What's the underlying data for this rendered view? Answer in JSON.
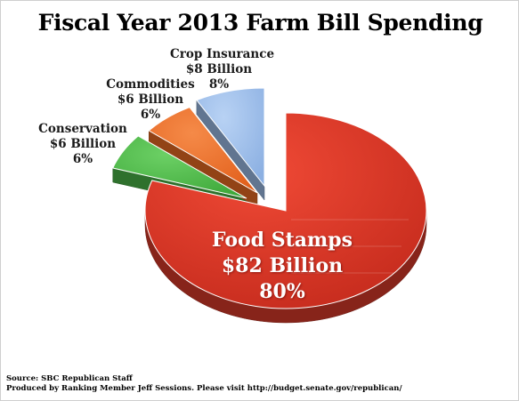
{
  "chart_data": {
    "type": "pie",
    "title": "Fiscal Year 2013 Farm Bill Spending",
    "slices": [
      {
        "label": "Food Stamps",
        "amount": "$82 Billion",
        "percent_label": "80%",
        "value": 80,
        "color": "#d93a2a"
      },
      {
        "label": "Conservation",
        "amount": "$6 Billion",
        "percent_label": "6%",
        "value": 6,
        "color": "#4cb748"
      },
      {
        "label": "Commodities",
        "amount": "$6 Billion",
        "percent_label": "6%",
        "value": 6,
        "color": "#ec6c24"
      },
      {
        "label": "Crop Insurance",
        "amount": "$8 Billion",
        "percent_label": "8%",
        "value": 8,
        "color": "#9cbde9"
      }
    ]
  },
  "footer": {
    "source": "Source: SBC Republican Staff",
    "produced": "Produced by Ranking Member Jeff Sessions.  Please visit http://budget.senate.gov/republican/"
  }
}
